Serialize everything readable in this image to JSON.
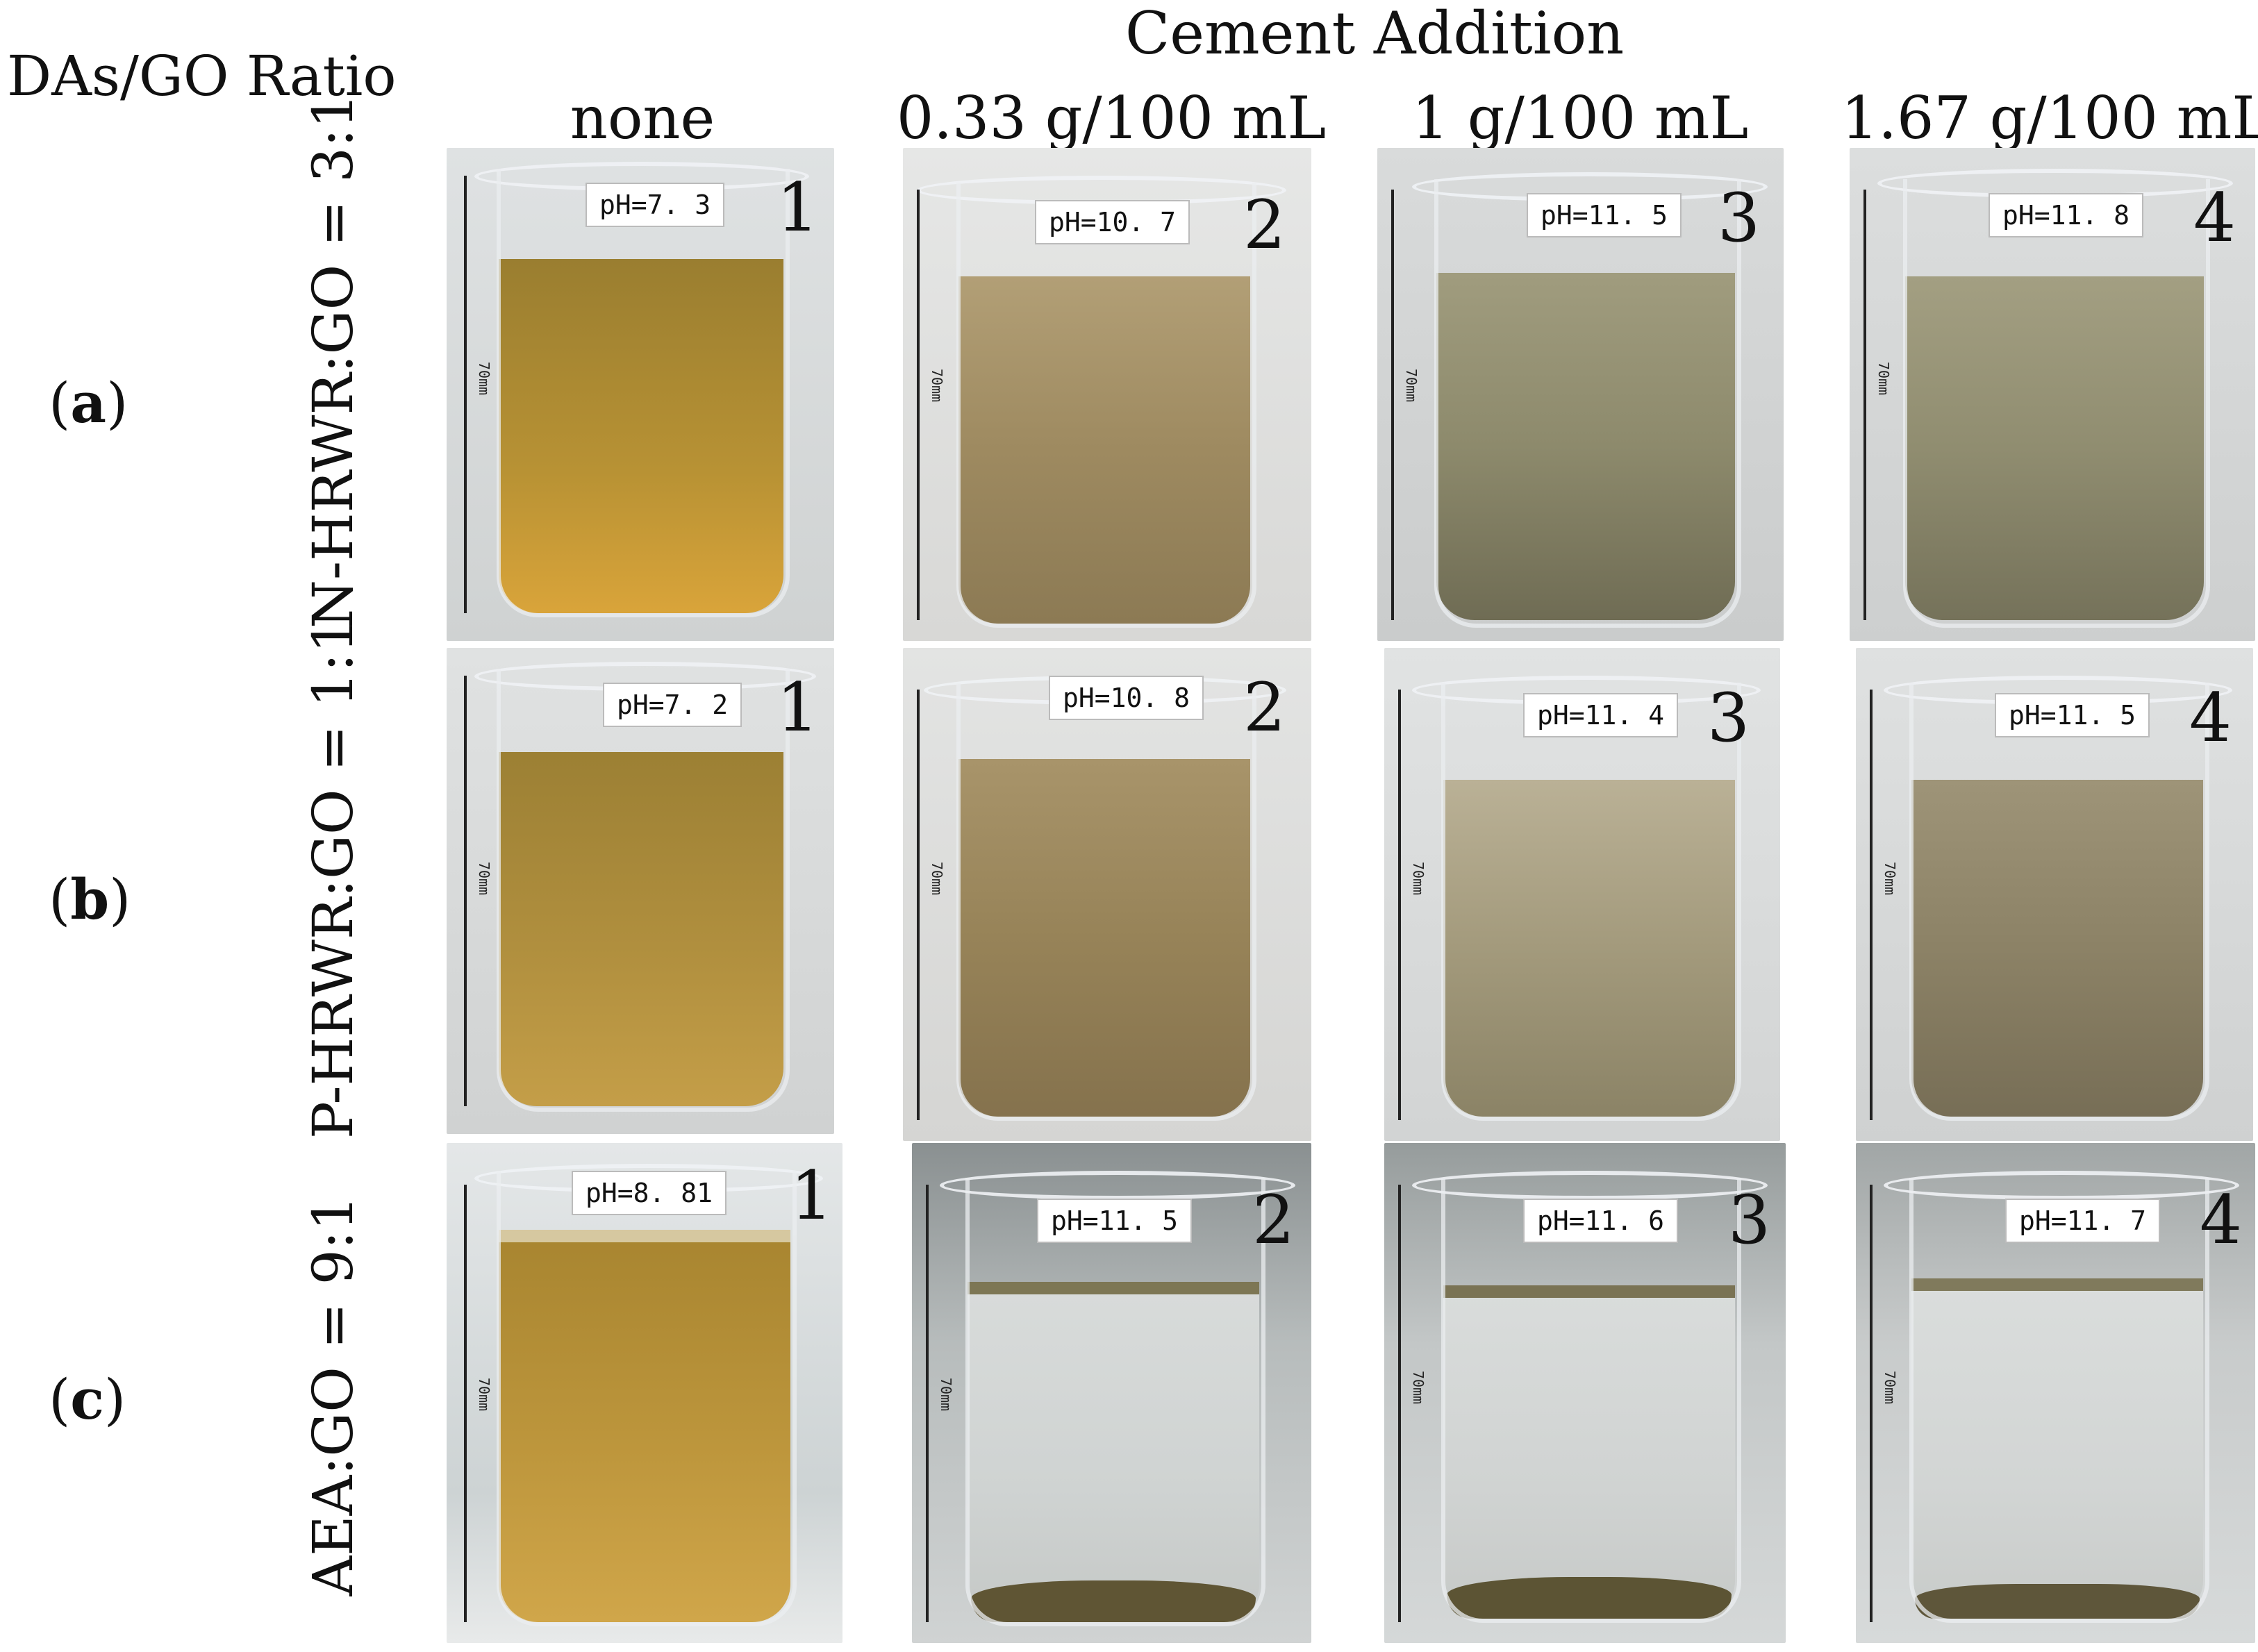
{
  "headers": {
    "ratio_label": "DAs/GO Ratio",
    "cement_label": "Cement Addition"
  },
  "columns": [
    "none",
    "0.33 g/100 mL",
    "1 g/100 mL",
    "1.67 g/100 mL"
  ],
  "rows": [
    {
      "label": "(a)",
      "label_letter": "a",
      "group_text": "N-HRWR:GO = 3:1",
      "samples": [
        {
          "ph": "pH=7. 3",
          "num": "1"
        },
        {
          "ph": "pH=10. 7",
          "num": "2"
        },
        {
          "ph": "pH=11. 5",
          "num": "3"
        },
        {
          "ph": "pH=11. 8",
          "num": "4"
        }
      ]
    },
    {
      "label": "(b)",
      "label_letter": "b",
      "group_text": "P-HRWR:GO = 1:1",
      "samples": [
        {
          "ph": "pH=7. 2",
          "num": "1"
        },
        {
          "ph": "pH=10. 8",
          "num": "2"
        },
        {
          "ph": "pH=11. 4",
          "num": "3"
        },
        {
          "ph": "pH=11. 5",
          "num": "4"
        }
      ]
    },
    {
      "label": "(c)",
      "label_letter": "c",
      "group_text": "AEA:GO = 9:1",
      "samples": [
        {
          "ph": "pH=8. 81",
          "num": "1"
        },
        {
          "ph": "pH=11. 5",
          "num": "2"
        },
        {
          "ph": "pH=11. 6",
          "num": "3"
        },
        {
          "ph": "pH=11. 7",
          "num": "4"
        }
      ]
    }
  ],
  "scale_text": "70mm",
  "colors": {
    "amber_liquid": "#b08a2c",
    "beige_liquid": "#a08a5c",
    "olive_liquid": "#8f8a6a",
    "clear_liquid": "#cfd4d4",
    "sediment": "#5a5234"
  }
}
